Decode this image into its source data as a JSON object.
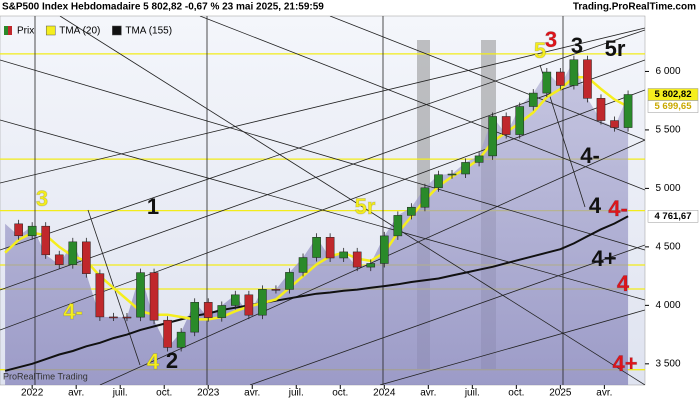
{
  "chart_data": {
    "type": "candlestick",
    "title": "S&P500 Index Hebdomadaire 5 802,82 -0,67 % 23 mai 2025, 21:59:59",
    "source": "Trading.ProRealTime.com",
    "watermark": "ProRealTime Trading",
    "x": [
      -8,
      -4,
      0,
      4,
      8,
      12,
      16,
      20,
      24,
      28,
      32,
      36,
      40,
      44,
      48,
      52,
      56,
      60,
      64,
      68,
      72,
      76,
      80,
      84,
      88,
      92,
      96,
      100,
      104,
      108,
      112,
      116,
      120,
      124,
      128,
      132,
      136,
      140,
      144,
      148,
      152,
      156,
      160,
      164,
      168,
      172,
      176
    ],
    "series": [
      {
        "name": "Prix",
        "color": "#2a8a2a",
        "down_color": "#c0282c",
        "last_label": "5 802,82",
        "values": [
          4697,
          4595,
          4677,
          4432,
          4348,
          4543,
          4271,
          3901,
          3900,
          3899,
          4280,
          3873,
          3640,
          3771,
          4026,
          3895,
          3999,
          4090,
          3916,
          4137,
          4136,
          4282,
          4409,
          4582,
          4405,
          4457,
          4327,
          4358,
          4594,
          4769,
          4839,
          5005,
          5117,
          5123,
          5222,
          5278,
          5615,
          5460,
          5700,
          5815,
          5995,
          5880,
          6100,
          5770,
          5580,
          5520,
          5802.82
        ]
      },
      {
        "name": "TMA (20)",
        "color": "#f5ee1e",
        "last_label": "5 699,65",
        "values": [
          4450,
          4560,
          4620,
          4600,
          4500,
          4420,
          4380,
          4250,
          4150,
          4050,
          3950,
          3920,
          3920,
          3900,
          3880,
          3880,
          3900,
          3950,
          3990,
          4020,
          4050,
          4150,
          4250,
          4350,
          4420,
          4450,
          4400,
          4380,
          4450,
          4620,
          4760,
          4900,
          5020,
          5100,
          5170,
          5250,
          5400,
          5480,
          5560,
          5650,
          5780,
          5850,
          5950,
          5950,
          5850,
          5760,
          5699.65
        ]
      },
      {
        "name": "TMA (155)",
        "color": "#111111",
        "last_label": "4 761,67",
        "values": [
          3440,
          3470,
          3500,
          3540,
          3580,
          3610,
          3650,
          3680,
          3720,
          3750,
          3790,
          3820,
          3850,
          3880,
          3910,
          3930,
          3960,
          3980,
          4000,
          4020,
          4040,
          4060,
          4080,
          4100,
          4110,
          4125,
          4135,
          4150,
          4165,
          4180,
          4200,
          4215,
          4230,
          4255,
          4280,
          4305,
          4330,
          4360,
          4390,
          4420,
          4450,
          4480,
          4530,
          4590,
          4650,
          4700,
          4761.67
        ]
      }
    ],
    "xlim": [
      -9.5,
      181
    ],
    "xticks": [
      {
        "value": 0,
        "label": "2022"
      },
      {
        "value": 13,
        "label": "avr."
      },
      {
        "value": 26,
        "label": "juil."
      },
      {
        "value": 39,
        "label": "oct."
      },
      {
        "value": 52,
        "label": "2023"
      },
      {
        "value": 65,
        "label": "avr."
      },
      {
        "value": 78,
        "label": "juil."
      },
      {
        "value": 91,
        "label": "oct."
      },
      {
        "value": 104,
        "label": "2024"
      },
      {
        "value": 117,
        "label": "avr."
      },
      {
        "value": 130,
        "label": "juil."
      },
      {
        "value": 143,
        "label": "oct."
      },
      {
        "value": 156,
        "label": "2025"
      },
      {
        "value": 169,
        "label": "avr."
      }
    ],
    "ylim": [
      3319,
      6474
    ],
    "yticks": [
      {
        "value": 3500,
        "label": "3 500"
      },
      {
        "value": 4000,
        "label": "4 000"
      },
      {
        "value": 4500,
        "label": "4 500"
      },
      {
        "value": 5000,
        "label": "5 000"
      },
      {
        "value": 5500,
        "label": "5 500"
      },
      {
        "value": 6000,
        "label": "6 000"
      }
    ],
    "hlines": [
      6150,
      5250,
      4810,
      4345,
      4140,
      3450
    ],
    "hline_color": "#f2ec1a",
    "annotations": [
      {
        "text": "3",
        "color": "#f5ee1e"
      },
      {
        "text": "4-",
        "color": "#f5ee1e"
      },
      {
        "text": "4",
        "color": "#f5ee1e"
      },
      {
        "text": "2",
        "color": "#111"
      },
      {
        "text": "1",
        "color": "#111"
      },
      {
        "text": "5r",
        "color": "#f5ee1e"
      },
      {
        "text": "5",
        "color": "#f5ee1e"
      },
      {
        "text": "3",
        "color": "#e0141a"
      },
      {
        "text": "3",
        "color": "#111"
      },
      {
        "text": "5r",
        "color": "#111"
      },
      {
        "text": "4-",
        "color": "#111"
      },
      {
        "text": "4",
        "color": "#111"
      },
      {
        "text": "4-",
        "color": "#e0141a"
      },
      {
        "text": "4+",
        "color": "#111"
      },
      {
        "text": "4",
        "color": "#e0141a"
      },
      {
        "text": "4+",
        "color": "#e0141a"
      }
    ]
  }
}
